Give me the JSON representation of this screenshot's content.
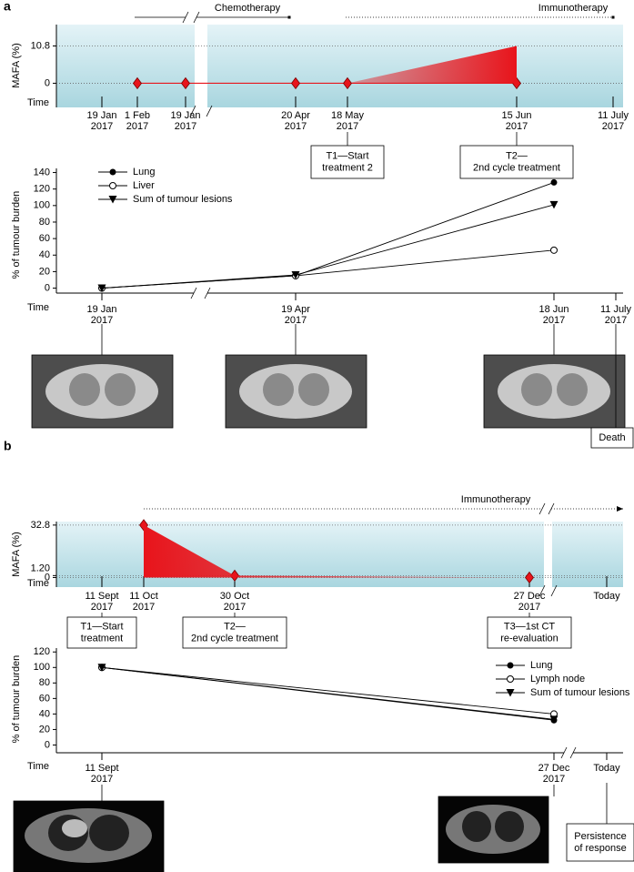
{
  "panel_labels": [
    "a",
    "b"
  ],
  "chart_data": [
    {
      "type": "area",
      "ylabel": "MAFA (%)",
      "xlabel": "Time",
      "ylim": [
        -7,
        17
      ],
      "yticks": [
        0,
        10.8
      ],
      "grid": true,
      "therapies": [
        "Chemotherapy",
        "Immunotherapy"
      ],
      "categories": [
        [
          "19 Jan",
          "2017"
        ],
        [
          "1 Feb",
          "2017"
        ],
        [
          "19 Jan",
          "2017"
        ],
        [
          "20 Apr",
          "2017"
        ],
        [
          "18 May",
          "2017"
        ],
        [
          "15 Jun",
          "2017"
        ],
        [
          "11 July",
          "2017"
        ]
      ],
      "series": [
        {
          "color": "#e8141b",
          "marker": "diamond",
          "line": true,
          "values": [
            null,
            0,
            0,
            0,
            0,
            0,
            null
          ]
        },
        {
          "color": "#e8141b",
          "fill": true,
          "values": [
            null,
            null,
            null,
            null,
            0,
            10.8,
            null
          ]
        }
      ],
      "boxes": [
        [
          "T1—Start",
          "treatment 2"
        ],
        [
          "T2—",
          "2nd cycle treatment"
        ]
      ]
    },
    {
      "type": "line",
      "ylabel": "% of tumour burden",
      "xlabel": "Time",
      "ylim": [
        -6,
        145
      ],
      "yticks": [
        0,
        20,
        40,
        60,
        80,
        100,
        120,
        140
      ],
      "grid": false,
      "legend": "upper left",
      "categories": [
        [
          "19 Jan",
          "2017"
        ],
        [
          "19 Apr",
          "2017"
        ],
        [
          "18 Jun",
          "2017"
        ],
        [
          "11 July",
          "2017"
        ]
      ],
      "series": [
        {
          "name": "Lung",
          "color": "#000000",
          "marker": "circle",
          "values": [
            0,
            15,
            128,
            null
          ]
        },
        {
          "name": "Liver",
          "color": "#000000",
          "marker": "open-circle",
          "values": [
            0,
            15,
            46,
            null
          ]
        },
        {
          "name": "Sum of tumour lesions",
          "color": "#000000",
          "marker": "triangle-down",
          "values": [
            0,
            16,
            101,
            null
          ]
        }
      ],
      "boxes": [
        [
          "Death"
        ]
      ]
    },
    {
      "type": "area",
      "ylabel": "MAFA (%)",
      "xlabel": "Time",
      "ylim": [
        -6,
        35
      ],
      "yticks": [
        0,
        {
          "value": 1.2,
          "label": "1.20"
        },
        32.8
      ],
      "grid": true,
      "therapies": [
        "Immunotherapy"
      ],
      "categories": [
        [
          "11 Sept",
          "2017"
        ],
        [
          "11 Oct",
          "2017"
        ],
        [
          "30 Oct",
          "2017"
        ],
        [
          "27 Dec",
          "2017"
        ],
        [
          "Today"
        ]
      ],
      "series": [
        {
          "color": "#e8141b",
          "marker": "diamond",
          "line": false,
          "values": [
            null,
            32.8,
            1.2,
            0,
            null
          ]
        },
        {
          "color": "#e8141b",
          "fill": true,
          "values": [
            null,
            32.8,
            1.2,
            0,
            null
          ]
        }
      ],
      "boxes": [
        [
          "T1—Start",
          "treatment"
        ],
        [
          "T2—",
          "2nd cycle treatment"
        ],
        [
          "T3—1st CT",
          "re-evaluation"
        ]
      ]
    },
    {
      "type": "line",
      "ylabel": "% of tumour burden",
      "xlabel": "Time",
      "ylim": [
        -10,
        125
      ],
      "yticks": [
        0,
        20,
        40,
        60,
        80,
        100,
        120
      ],
      "grid": false,
      "legend": "upper right",
      "categories": [
        [
          "11 Sept",
          "2017"
        ],
        [
          "27 Dec",
          "2017"
        ],
        [
          "Today"
        ]
      ],
      "series": [
        {
          "name": "Lung",
          "color": "#000000",
          "marker": "circle",
          "values": [
            100,
            32,
            null
          ]
        },
        {
          "name": "Lymph node",
          "color": "#000000",
          "marker": "open-circle",
          "values": [
            100,
            40,
            null
          ]
        },
        {
          "name": "Sum of tumour lesions",
          "color": "#000000",
          "marker": "triangle-down",
          "values": [
            100,
            33,
            null
          ]
        }
      ],
      "boxes": [
        [
          "Persistence",
          "of response"
        ]
      ]
    }
  ]
}
